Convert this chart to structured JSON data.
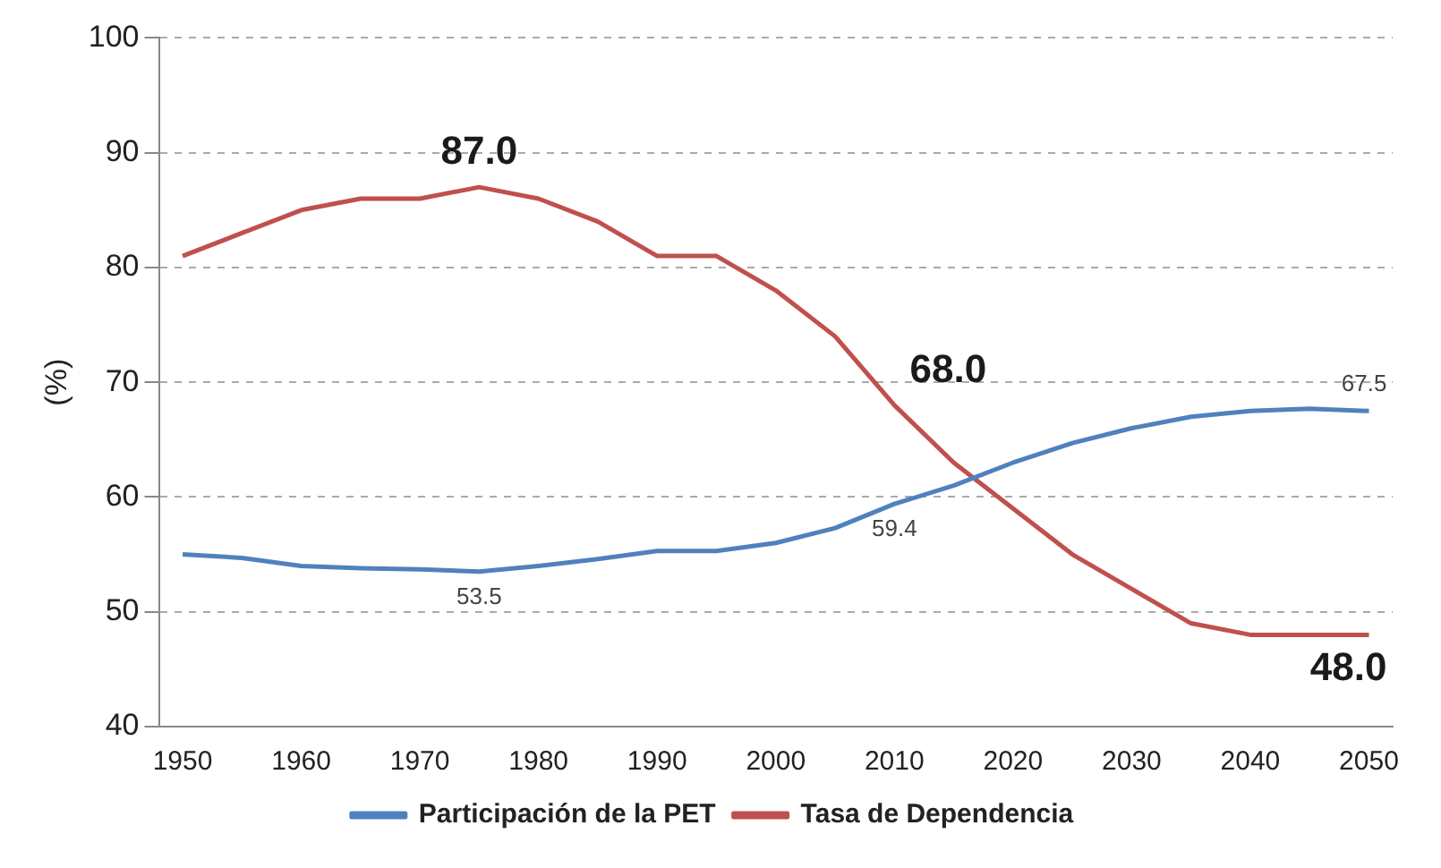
{
  "chart_data": {
    "type": "line",
    "ylabel": "(%)",
    "x": [
      1950,
      1955,
      1960,
      1965,
      1970,
      1975,
      1980,
      1985,
      1990,
      1995,
      2000,
      2005,
      2010,
      2015,
      2020,
      2025,
      2030,
      2035,
      2040,
      2045,
      2050
    ],
    "series": [
      {
        "name": "Participación de la PET",
        "color": "#4f81bd",
        "values": [
          55,
          54.7,
          54,
          53.8,
          53.7,
          53.5,
          54,
          54.6,
          55.3,
          55.3,
          56,
          57.3,
          59.4,
          61,
          63,
          64.7,
          66,
          67,
          67.5,
          67.7,
          67.5
        ],
        "value_labels": [
          null,
          null,
          null,
          null,
          null,
          "53.5",
          null,
          null,
          null,
          null,
          null,
          null,
          "59.4",
          null,
          null,
          null,
          null,
          null,
          null,
          null,
          "67.5"
        ]
      },
      {
        "name": "Tasa de Dependencia",
        "color": "#c0504d",
        "values": [
          81,
          83,
          85,
          86,
          86,
          87,
          86,
          84,
          81,
          81,
          78,
          74,
          68,
          63,
          59,
          55,
          52,
          49,
          48,
          48,
          48
        ],
        "value_labels": [
          null,
          null,
          null,
          null,
          null,
          "87.0",
          null,
          null,
          null,
          null,
          null,
          null,
          "68.0",
          null,
          null,
          null,
          null,
          null,
          null,
          null,
          "48.0"
        ]
      }
    ],
    "xlim": [
      1948,
      2052
    ],
    "xticks": [
      1950,
      1960,
      1970,
      1980,
      1990,
      2000,
      2010,
      2020,
      2030,
      2040,
      2050
    ],
    "ylim": [
      40,
      100
    ],
    "yticks": [
      40,
      50,
      60,
      70,
      80,
      90,
      100
    ],
    "grid": "y",
    "legend": "bottom",
    "marker": "none",
    "line_style": "solid"
  }
}
